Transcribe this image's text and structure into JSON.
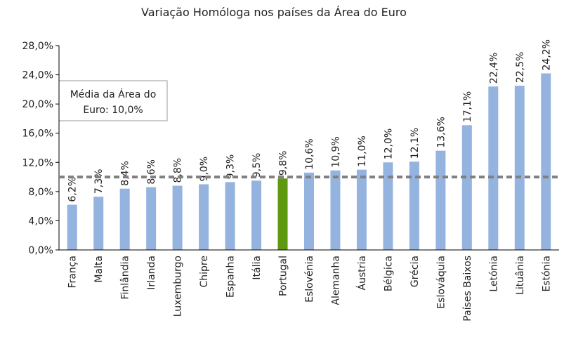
{
  "chart_data": {
    "type": "bar",
    "title": "Variação Homóloga nos países da Área do Euro",
    "categories": [
      "França",
      "Malta",
      "Finlândia",
      "Irlanda",
      "Luxemburgo",
      "Chipre",
      "Espanha",
      "Itália",
      "Portugal",
      "Eslovénia",
      "Alemanha",
      "Áustria",
      "Bélgica",
      "Grécia",
      "Eslováquia",
      "Países Baixos",
      "Letónia",
      "Lituânia",
      "Estónia"
    ],
    "values": [
      6.2,
      7.3,
      8.4,
      8.6,
      8.8,
      9.0,
      9.3,
      9.5,
      9.8,
      10.6,
      10.9,
      11.0,
      12.0,
      12.1,
      13.6,
      17.1,
      22.4,
      22.5,
      24.2
    ],
    "value_labels": [
      "6,2%",
      "7,3%",
      "8,4%",
      "8,6%",
      "8,8%",
      "9,0%",
      "9,3%",
      "9,5%",
      "9,8%",
      "10,6%",
      "10,9%",
      "11,0%",
      "12,0%",
      "12,1%",
      "13,6%",
      "17,1%",
      "22,4%",
      "22,5%",
      "24,2%"
    ],
    "ylim": [
      0,
      28
    ],
    "yticks": [
      0,
      4,
      8,
      12,
      16,
      20,
      24,
      28
    ],
    "ytick_labels": [
      "0,0%",
      "4,0%",
      "8,0%",
      "12,0%",
      "16,0%",
      "20,0%",
      "24,0%",
      "28,0%"
    ],
    "reference_line": {
      "value": 10.0,
      "style": "dashed"
    },
    "annotation": {
      "line1": "Média da Área do",
      "line2": "Euro: 10,0%"
    },
    "highlight_category": "Portugal",
    "colors": {
      "bar": "#95b3df",
      "highlight": "#5e9910",
      "reference_line": "#808080",
      "axis": "#000000"
    },
    "grid": false,
    "xlabel": "",
    "ylabel": ""
  }
}
